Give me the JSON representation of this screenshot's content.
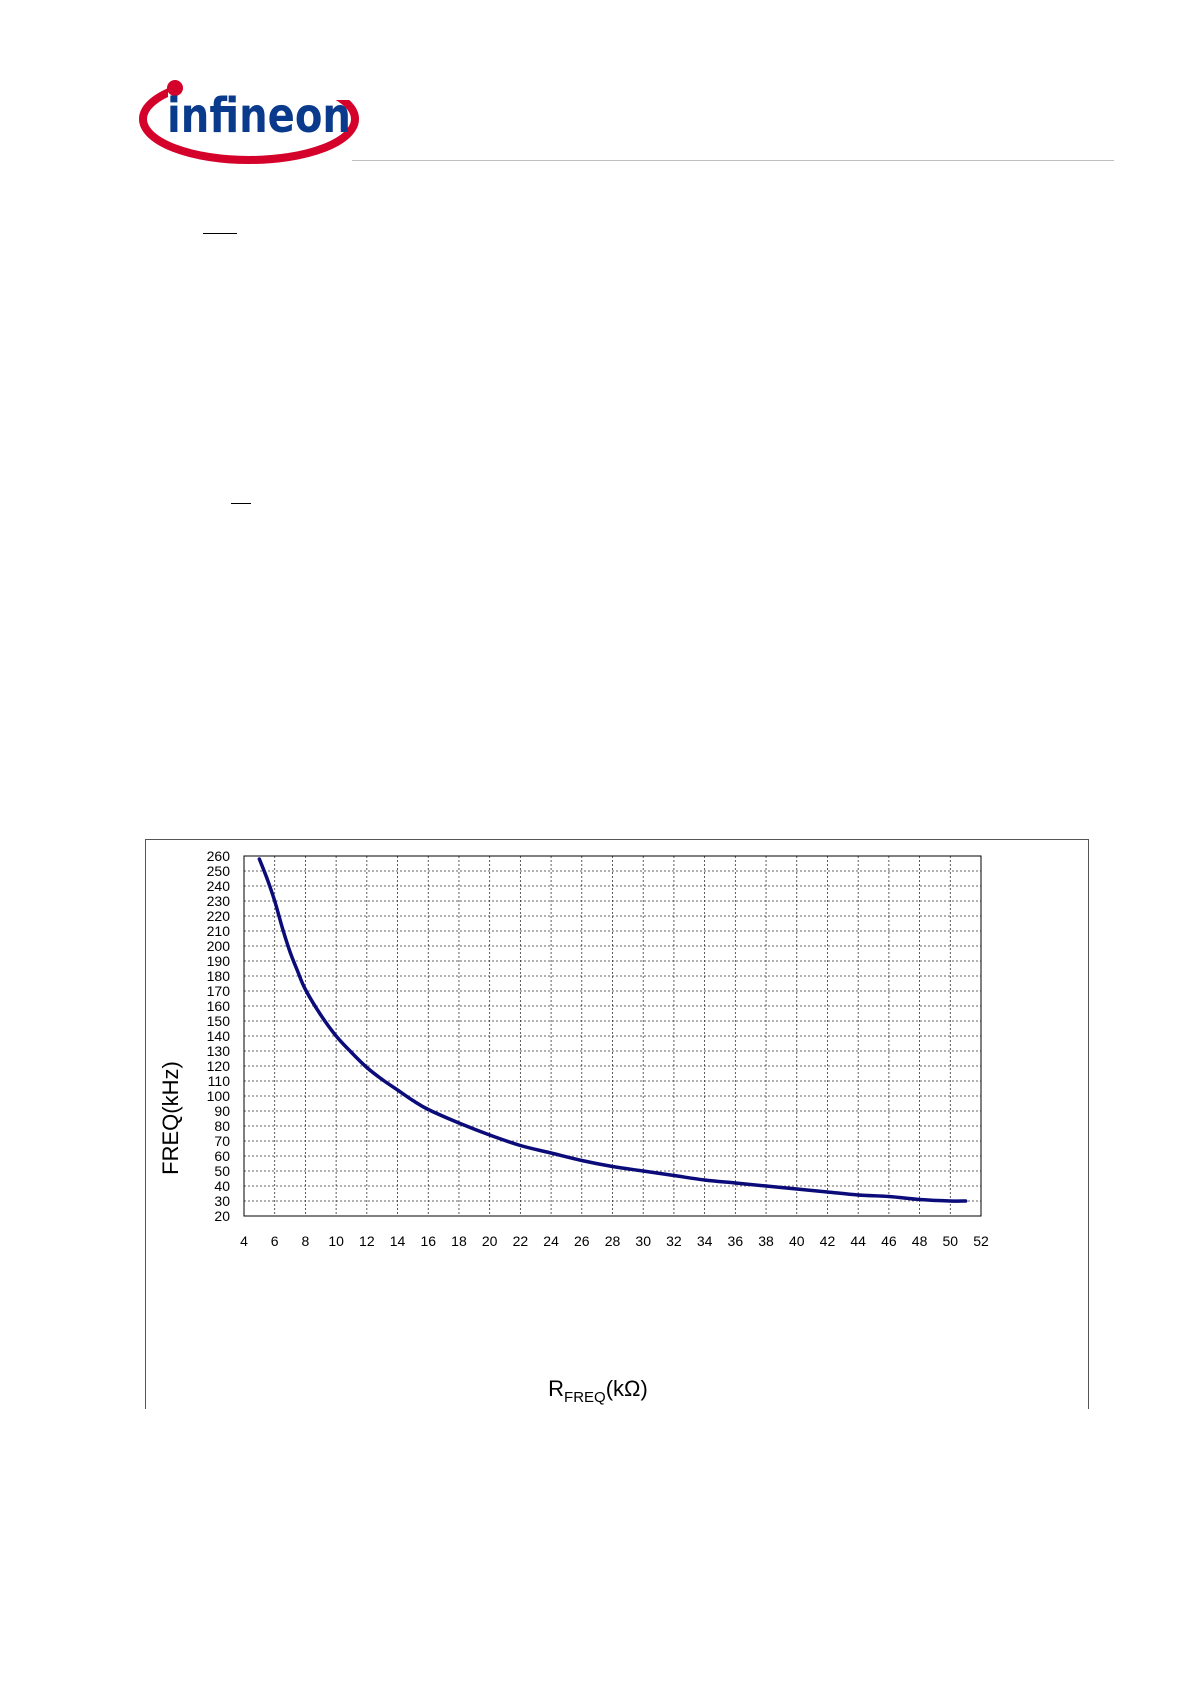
{
  "header": {
    "brand": "infineon",
    "colors": {
      "brand_blue": "#0A3A8C",
      "brand_red": "#D4022A",
      "rule": "#bfbfbf"
    }
  },
  "chart_data": {
    "type": "line",
    "xlabel": "R",
    "xlabel_subscript": "FREQ",
    "xlabel_suffix": "(kΩ)",
    "ylabel": "FREQ(kHz)",
    "xlim": [
      4,
      52
    ],
    "ylim": [
      20,
      260
    ],
    "x_ticks": [
      4,
      6,
      8,
      10,
      12,
      14,
      16,
      18,
      20,
      22,
      24,
      26,
      28,
      30,
      32,
      34,
      36,
      38,
      40,
      42,
      44,
      46,
      48,
      50,
      52
    ],
    "y_ticks": [
      260,
      250,
      240,
      230,
      220,
      210,
      200,
      190,
      180,
      170,
      160,
      150,
      140,
      130,
      120,
      110,
      100,
      90,
      80,
      70,
      60,
      50,
      40,
      30,
      20
    ],
    "grid": true,
    "grid_style": "dashed",
    "series": [
      {
        "color": "#0B0B7A",
        "x": [
          5,
          5.5,
          6,
          6.5,
          7,
          7.5,
          8,
          9,
          10,
          11,
          12,
          13,
          14,
          15,
          16,
          18,
          20,
          22,
          24,
          26,
          28,
          30,
          32,
          34,
          36,
          38,
          40,
          42,
          44,
          46,
          48,
          50,
          51
        ],
        "y": [
          258,
          245,
          230,
          212,
          196,
          183,
          171,
          154,
          140,
          129,
          119,
          111,
          104,
          97,
          91,
          82,
          74,
          67,
          62,
          57,
          53,
          50,
          47,
          44,
          42,
          40,
          38,
          36,
          34,
          33,
          31,
          30,
          30
        ]
      }
    ]
  }
}
